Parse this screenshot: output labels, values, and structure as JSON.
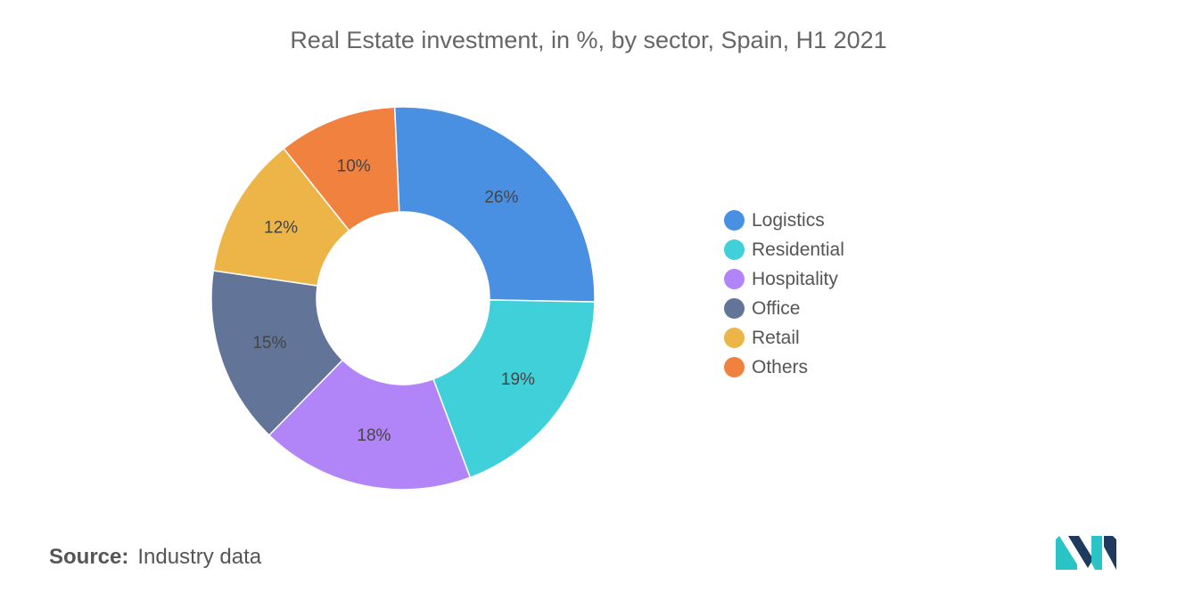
{
  "chart_data": {
    "type": "pie",
    "title": "Real Estate investment, in %, by sector, Spain, H1 2021",
    "categories": [
      "Logistics",
      "Residential",
      "Hospitality",
      "Office",
      "Retail",
      "Others"
    ],
    "values": [
      26,
      19,
      18,
      15,
      12,
      10
    ],
    "labels": [
      "26%",
      "19%",
      "18%",
      "15%",
      "12%",
      "10%"
    ],
    "colors": [
      "#4A90E2",
      "#40D0DA",
      "#B185F8",
      "#627498",
      "#EDB548",
      "#F0813F"
    ],
    "legend_position": "right",
    "donut": true
  },
  "source": {
    "key": "Source:",
    "value": "Industry data"
  },
  "logo": {
    "icon": "mordor-intelligence-logo-icon",
    "colors": [
      "#1E3A5F",
      "#2BC4C6"
    ]
  }
}
